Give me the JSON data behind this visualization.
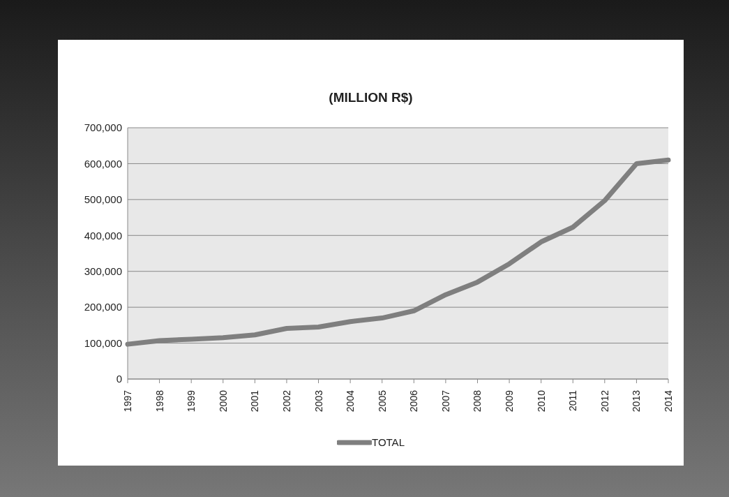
{
  "chart_data": {
    "type": "line",
    "title": "(MILLION R$)",
    "categories": [
      "1997",
      "1998",
      "1999",
      "2000",
      "2001",
      "2002",
      "2003",
      "2004",
      "2005",
      "2006",
      "2007",
      "2008",
      "2009",
      "2010",
      "2011",
      "2012",
      "2013",
      "2014"
    ],
    "series": [
      {
        "name": "TOTAL",
        "color": "#7f7f7f",
        "values": [
          97000,
          107000,
          111000,
          115000,
          123000,
          141000,
          145000,
          160000,
          170000,
          190000,
          235000,
          270000,
          321000,
          382000,
          423000,
          497000,
          600000,
          610000
        ]
      }
    ],
    "ylim": [
      0,
      700000
    ],
    "yticks": [
      {
        "value": 0,
        "label": "0"
      },
      {
        "value": 100000,
        "label": "100,000"
      },
      {
        "value": 200000,
        "label": "200,000"
      },
      {
        "value": 300000,
        "label": "300,000"
      },
      {
        "value": 400000,
        "label": "400,000"
      },
      {
        "value": 500000,
        "label": "500,000"
      },
      {
        "value": 600000,
        "label": "600,000"
      },
      {
        "value": 700000,
        "label": "700,000"
      }
    ],
    "grid": "y",
    "legend": "bottom",
    "marker": "none",
    "line_style": "solid"
  }
}
